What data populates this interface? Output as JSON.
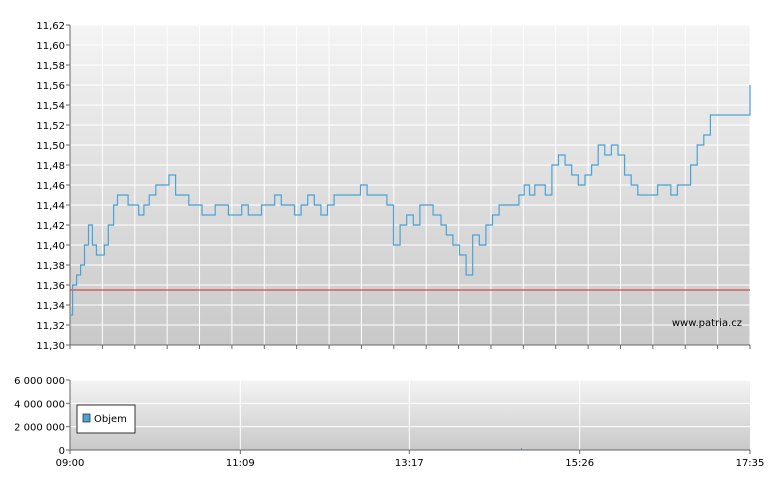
{
  "colors": {
    "price_line": "#4aa3d6",
    "reference_line": "#cc2a1e",
    "volume_legend_swatch": "#4aa3d6",
    "grid": "#ffffff",
    "panel_top": "#f4f4f4",
    "panel_bottom": "#c9c9c9"
  },
  "watermark": "www.patria.cz",
  "chart_data": [
    {
      "type": "line",
      "ylim": [
        11.3,
        11.62
      ],
      "y_ticks": [
        "11,30",
        "11,32",
        "11,34",
        "11,36",
        "11,38",
        "11,40",
        "11,42",
        "11,44",
        "11,46",
        "11,48",
        "11,50",
        "11,52",
        "11,54",
        "11,56",
        "11,58",
        "11,60",
        "11,62"
      ],
      "x_ticks": [
        "09:00",
        "11:09",
        "13:17",
        "15:26",
        "17:35"
      ],
      "reference_line": 11.355,
      "series": [
        {
          "x": [
            "09:00",
            "09:02",
            "09:05",
            "09:08",
            "09:11",
            "09:14",
            "09:17",
            "09:20",
            "09:23",
            "09:26",
            "09:29",
            "09:33",
            "09:36",
            "09:40",
            "09:44",
            "09:48",
            "09:52",
            "09:56",
            "10:00",
            "10:05",
            "10:10",
            "10:15",
            "10:20",
            "10:25",
            "10:30",
            "10:35",
            "10:40",
            "10:45",
            "10:50",
            "10:55",
            "11:00",
            "11:05",
            "11:10",
            "11:15",
            "11:20",
            "11:25",
            "11:30",
            "11:35",
            "11:40",
            "11:45",
            "11:50",
            "11:55",
            "12:00",
            "12:05",
            "12:10",
            "12:15",
            "12:20",
            "12:25",
            "12:30",
            "12:35",
            "12:40",
            "12:45",
            "12:50",
            "12:55",
            "13:00",
            "13:05",
            "13:10",
            "13:15",
            "13:20",
            "13:25",
            "13:30",
            "13:35",
            "13:38",
            "13:41",
            "13:45",
            "13:50",
            "13:55",
            "14:00",
            "14:05",
            "14:10",
            "14:15",
            "14:20",
            "14:25",
            "14:30",
            "14:35",
            "14:40",
            "14:42",
            "14:44",
            "14:48",
            "14:52",
            "14:56",
            "15:00",
            "15:05",
            "15:10",
            "15:15",
            "15:20",
            "15:25",
            "15:30",
            "15:35",
            "15:40",
            "15:45",
            "15:50",
            "15:55",
            "16:00",
            "16:05",
            "16:10",
            "16:15",
            "16:20",
            "16:25",
            "16:30",
            "16:35",
            "16:40",
            "16:45",
            "16:50",
            "16:55",
            "17:00",
            "17:05",
            "17:10",
            "17:15",
            "17:20",
            "17:25",
            "17:30",
            "17:33",
            "17:35"
          ],
          "values": [
            11.33,
            11.36,
            11.37,
            11.38,
            11.4,
            11.42,
            11.4,
            11.39,
            11.39,
            11.4,
            11.42,
            11.44,
            11.45,
            11.45,
            11.44,
            11.44,
            11.43,
            11.44,
            11.45,
            11.46,
            11.46,
            11.47,
            11.45,
            11.45,
            11.44,
            11.44,
            11.43,
            11.43,
            11.44,
            11.44,
            11.43,
            11.43,
            11.44,
            11.43,
            11.43,
            11.44,
            11.44,
            11.45,
            11.44,
            11.44,
            11.43,
            11.44,
            11.45,
            11.44,
            11.43,
            11.44,
            11.45,
            11.45,
            11.45,
            11.45,
            11.46,
            11.45,
            11.45,
            11.45,
            11.44,
            11.4,
            11.42,
            11.43,
            11.42,
            11.44,
            11.44,
            11.43,
            11.43,
            11.42,
            11.41,
            11.4,
            11.39,
            11.37,
            11.41,
            11.4,
            11.42,
            11.43,
            11.44,
            11.44,
            11.44,
            11.45,
            11.45,
            11.46,
            11.45,
            11.46,
            11.46,
            11.45,
            11.48,
            11.49,
            11.48,
            11.47,
            11.46,
            11.47,
            11.48,
            11.5,
            11.49,
            11.5,
            11.49,
            11.47,
            11.46,
            11.45,
            11.45,
            11.45,
            11.46,
            11.46,
            11.45,
            11.46,
            11.46,
            11.48,
            11.5,
            11.51,
            11.53,
            11.53,
            11.53,
            11.53,
            11.53,
            11.53,
            11.53,
            11.56
          ]
        }
      ]
    },
    {
      "type": "bar",
      "ylim": [
        0,
        6000000
      ],
      "y_ticks": [
        "0",
        "2 000 000",
        "4 000 000",
        "6 000 000"
      ],
      "x_ticks": [
        "09:00",
        "11:09",
        "13:17",
        "15:26",
        "17:35"
      ],
      "series": [
        {
          "name": "Objem",
          "x": [
            "09:00",
            "09:30",
            "10:00",
            "10:30",
            "11:00",
            "11:30",
            "12:00",
            "12:30",
            "13:00",
            "13:30",
            "14:00",
            "14:30",
            "14:42",
            "15:00",
            "15:30",
            "16:00",
            "16:30",
            "17:00",
            "17:30",
            "17:35"
          ],
          "values": [
            20000,
            15000,
            12000,
            14000,
            13000,
            11000,
            10000,
            12000,
            11000,
            13000,
            15000,
            18000,
            160000,
            16000,
            22000,
            18000,
            15000,
            20000,
            25000,
            40000
          ]
        }
      ]
    }
  ]
}
